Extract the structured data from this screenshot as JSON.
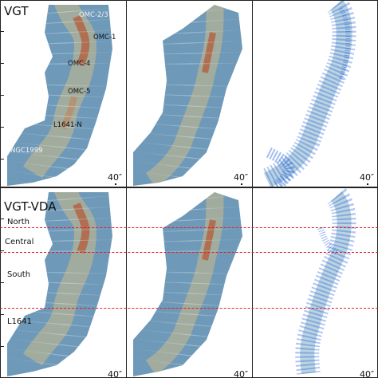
{
  "rows": [
    {
      "title": "VGT",
      "scale_label": "40″",
      "labels": [
        {
          "text": "OMC-2/3",
          "tone": "light"
        },
        {
          "text": "OMC-1",
          "tone": "dark"
        },
        {
          "text": "OMC-4",
          "tone": "dark"
        },
        {
          "text": "OMC-5",
          "tone": "dark"
        },
        {
          "text": "L1641-N",
          "tone": "dark"
        },
        {
          "text": "NGC1999",
          "tone": "light"
        }
      ]
    },
    {
      "title": "VGT-VDA",
      "scale_label": "40″",
      "regions": [
        "North",
        "Central",
        "South",
        "L1641"
      ]
    }
  ],
  "colors": {
    "boundary_line": "#e0202a",
    "map_base": "#6f99b8",
    "map_peak": "#b5603e",
    "mask_points": "#1f5fd6"
  }
}
